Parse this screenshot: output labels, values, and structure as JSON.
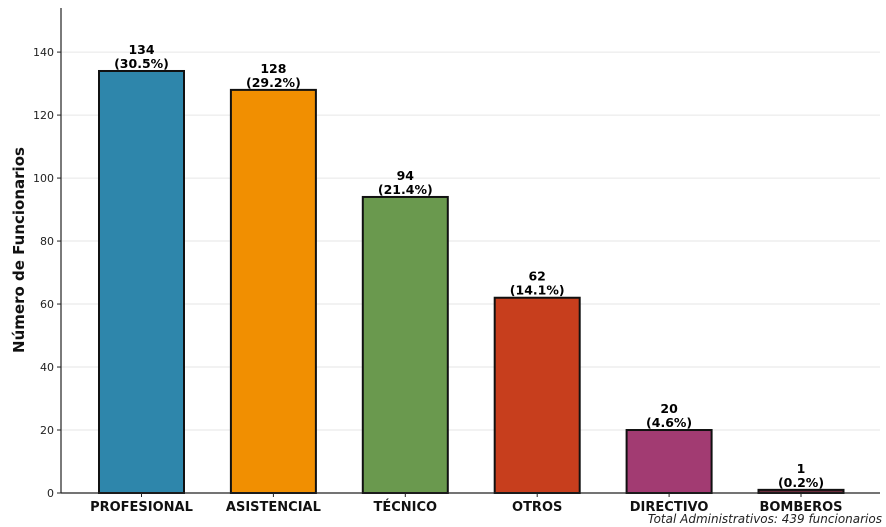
{
  "chart_data": {
    "type": "bar",
    "ylabel": "Número de Funcionarios",
    "xlabel": "",
    "ylim": [
      0,
      154
    ],
    "yticks": [
      0,
      20,
      40,
      60,
      80,
      100,
      120,
      140
    ],
    "grid": "horizontal",
    "categories": [
      "PROFESIONAL",
      "ASISTENCIAL",
      "TÉCNICO",
      "OTROS",
      "DIRECTIVO",
      "BOMBEROS"
    ],
    "values": [
      134,
      128,
      94,
      62,
      20,
      1
    ],
    "percent_labels": [
      "(30.5%)",
      "(29.2%)",
      "(21.4%)",
      "(14.1%)",
      "(4.6%)",
      "(0.2%)"
    ],
    "colors": [
      "#2e86ab",
      "#f18f01",
      "#6a994e",
      "#c73e1d",
      "#a23b72",
      "#6b2d3c"
    ],
    "annotation": "Total Administrativos: 439 funcionarios"
  }
}
